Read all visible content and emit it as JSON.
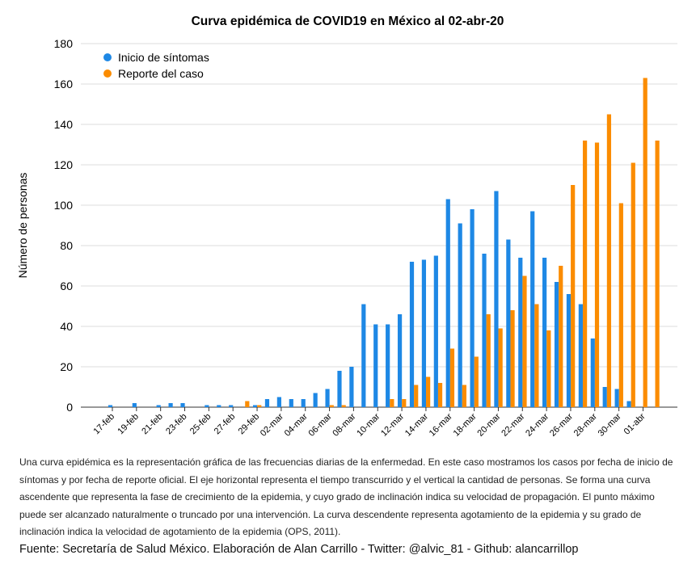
{
  "chart_data": {
    "type": "bar",
    "title": "Curva epidémica de COVID19 en México al 02-abr-20",
    "y_label": "Número de personas",
    "categories": [
      "17-feb",
      null,
      "19-feb",
      null,
      "21-feb",
      null,
      "23-feb",
      null,
      "25-feb",
      null,
      "27-feb",
      null,
      "29-feb",
      null,
      "02-mar",
      null,
      "04-mar",
      null,
      "06-mar",
      null,
      "08-mar",
      null,
      "10-mar",
      null,
      "12-mar",
      null,
      "14-mar",
      null,
      "16-mar",
      null,
      "18-mar",
      null,
      "20-mar",
      null,
      "22-mar",
      null,
      "24-mar",
      null,
      "26-mar",
      null,
      "28-mar",
      null,
      "30-mar",
      null,
      "01-abr",
      null
    ],
    "series": [
      {
        "name": "Inicio de síntomas",
        "color": "#1e88e5",
        "values": [
          1,
          0,
          2,
          0,
          1,
          2,
          2,
          0,
          1,
          1,
          1,
          0,
          1,
          4,
          5,
          4,
          4,
          7,
          9,
          18,
          20,
          51,
          41,
          41,
          46,
          72,
          73,
          75,
          103,
          91,
          98,
          76,
          107,
          83,
          74,
          97,
          74,
          62,
          56,
          51,
          34,
          10,
          9,
          3,
          0,
          0
        ]
      },
      {
        "name": "Reporte del caso",
        "color": "#fb8c00",
        "values": [
          0,
          0,
          0,
          0,
          0,
          0,
          0,
          0,
          0,
          0,
          0,
          3,
          1,
          0,
          0,
          0,
          0,
          0,
          1,
          1,
          0,
          0,
          0,
          4,
          4,
          11,
          15,
          12,
          29,
          11,
          25,
          46,
          39,
          48,
          65,
          51,
          38,
          70,
          110,
          132,
          131,
          145,
          101,
          121,
          163,
          132
        ]
      }
    ],
    "ylim": [
      0,
      180
    ],
    "yticks": [
      0,
      20,
      40,
      60,
      80,
      100,
      120,
      140,
      160,
      180
    ],
    "grid": true,
    "legend": "top-left"
  },
  "description": "Una curva epidémica es la representación gráfica de las frecuencias diarias de la enfermedad. En este caso mostramos los casos por fecha de inicio de síntomas y por fecha de reporte oficial. El eje horizontal representa el tiempo transcurrido y el vertical la cantidad de personas. Se forma una curva ascendente que representa la fase de crecimiento de la epidemia, y cuyo  grado de inclinación  indica su velocidad de propagación. El punto máximo puede  ser alcanzado naturalmente o truncado por una intervención. La curva descendente representa agotamiento  de la epidemia y su grado de inclinación indica la velocidad de agotamiento de la epidemia (OPS, 2011).",
  "source": "Fuente: Secretaría de Salud México. Elaboración de Alan Carrillo - Twitter: @alvic_81 - Github: alancarrillop"
}
